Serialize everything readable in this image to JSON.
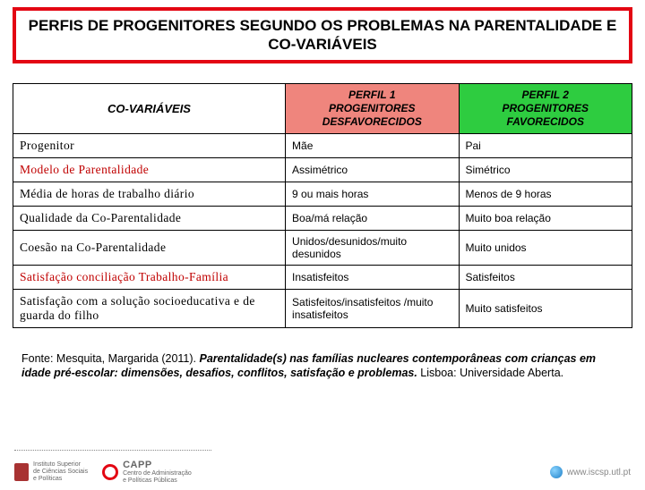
{
  "title": "PERFIS DE PROGENITORES SEGUNDO OS PROBLEMAS NA PARENTALIDADE E CO-VARIÁVEIS",
  "title_border_color": "#e30613",
  "table": {
    "header": {
      "covars": "CO-VARIÁVEIS",
      "perfil1": {
        "line1": "PERFIL 1",
        "line2": "PROGENITORES DESFAVORECIDOS",
        "bg": "#ef857d"
      },
      "perfil2": {
        "line1": "PERFIL 2",
        "line2": "PROGENITORES FAVORECIDOS",
        "bg": "#2ecc40"
      }
    },
    "rows": [
      {
        "label": "Progenitor",
        "red": false,
        "p1": "Mãe",
        "p2": "Pai"
      },
      {
        "label": "Modelo de Parentalidade",
        "red": true,
        "p1": "Assimétrico",
        "p2": "Simétrico"
      },
      {
        "label": "Média de horas de trabalho diário",
        "red": false,
        "p1": "9 ou mais horas",
        "p2": "Menos de 9 horas"
      },
      {
        "label": "Qualidade da Co-Parentalidade",
        "red": false,
        "p1": "Boa/má relação",
        "p2": "Muito boa relação"
      },
      {
        "label": "Coesão na Co-Parentalidade",
        "red": false,
        "p1": "Unidos/desunidos/muito desunidos",
        "p2": "Muito unidos"
      },
      {
        "label": "Satisfação conciliação Trabalho-Família",
        "red": true,
        "p1": "Insatisfeitos",
        "p2": "Satisfeitos"
      },
      {
        "label": "Satisfação com a solução socioeducativa e de guarda do filho",
        "red": false,
        "p1": "Satisfeitos/insatisfeitos /muito insatisfeitos",
        "p2": "Muito satisfeitos"
      }
    ]
  },
  "source": {
    "prefix": "Fonte: Mesquita, Margarida (2011). ",
    "title_part": "Parentalidade(s) nas famílias nucleares contemporâneas com crianças em idade pré-escolar: dimensões, desafios, conflitos, satisfação e problemas.",
    "suffix": " Lisboa: Universidade Aberta."
  },
  "footer": {
    "logo1": {
      "color": "#a83232",
      "text1": "Instituto Superior",
      "text2": "de Ciências Sociais",
      "text3": "e Políticas"
    },
    "logo2": {
      "ring_color": "#e30613",
      "name": "CAPP",
      "sub1": "Centro de Administração",
      "sub2": "e Políticas Públicas"
    },
    "url": "www.iscsp.utl.pt"
  }
}
